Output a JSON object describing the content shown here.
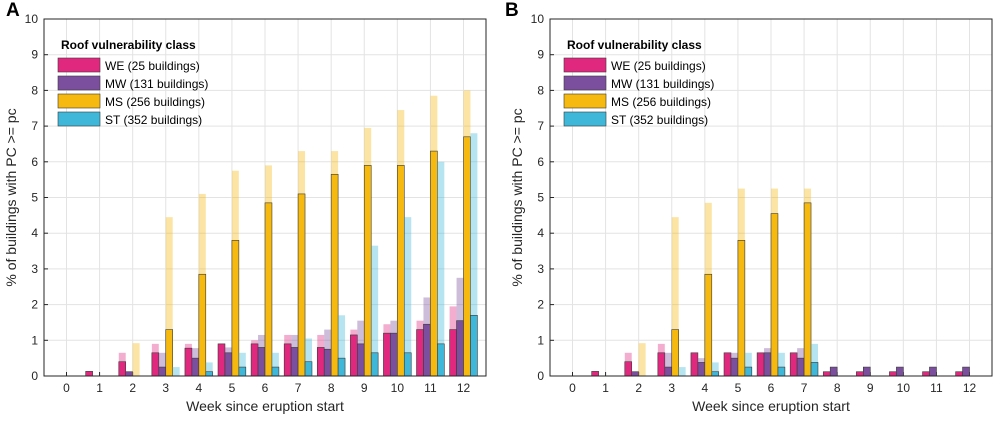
{
  "chart_data": [
    {
      "type": "bar",
      "panel_label": "A",
      "xlabel": "Week since eruption start",
      "ylabel": "% of buildings with PC >= pc",
      "ylim": [
        0,
        10
      ],
      "yticks": [
        "0",
        "1",
        "2",
        "3",
        "4",
        "5",
        "6",
        "7",
        "8",
        "9",
        "10"
      ],
      "categories": [
        "0",
        "1",
        "2",
        "3",
        "4",
        "5",
        "6",
        "7",
        "8",
        "9",
        "10",
        "11",
        "12"
      ],
      "grid": true,
      "legend": {
        "title": "Roof vulnerability class",
        "placement": "top-left",
        "entries": [
          "WE (25 buildings)",
          "MW (131 buildings)",
          "MS (256 buildings)",
          "ST (352 buildings)"
        ]
      },
      "series": [
        {
          "name": "WE (25 buildings)",
          "color": "#e0287f",
          "values": [
            0,
            0.13,
            0.4,
            0.65,
            0.78,
            0.9,
            0.9,
            0.9,
            0.8,
            1.15,
            1.2,
            1.3,
            1.3
          ],
          "upper": [
            0,
            0.13,
            0.65,
            0.9,
            0.9,
            0.9,
            1.0,
            1.15,
            1.15,
            1.3,
            1.45,
            1.55,
            1.95
          ]
        },
        {
          "name": "MW (131 buildings)",
          "color": "#7b4f9e",
          "values": [
            0,
            0,
            0.12,
            0.25,
            0.5,
            0.65,
            0.8,
            0.8,
            0.75,
            0.9,
            1.2,
            1.45,
            1.55
          ],
          "upper": [
            0,
            0,
            0.12,
            0.65,
            0.78,
            0.8,
            1.15,
            1.15,
            1.3,
            1.55,
            1.55,
            2.2,
            2.75
          ]
        },
        {
          "name": "MS (256 buildings)",
          "color": "#f5b90f",
          "values": [
            0,
            0,
            0,
            1.3,
            2.85,
            3.8,
            4.85,
            5.1,
            5.65,
            5.9,
            5.9,
            6.3,
            6.7
          ],
          "upper": [
            0,
            0,
            0.92,
            4.45,
            5.1,
            5.75,
            5.9,
            6.3,
            6.3,
            6.95,
            7.45,
            7.85,
            8.0
          ]
        },
        {
          "name": "ST (352 buildings)",
          "color": "#3fb7d9",
          "values": [
            0,
            0,
            0,
            0,
            0.12,
            0.25,
            0.25,
            0.4,
            0.5,
            0.65,
            0.65,
            0.9,
            1.7
          ],
          "upper": [
            0,
            0,
            0,
            0.25,
            0.38,
            0.65,
            0.65,
            1.05,
            1.7,
            3.65,
            4.45,
            6.0,
            6.8
          ]
        }
      ]
    },
    {
      "type": "bar",
      "panel_label": "B",
      "xlabel": "Week since eruption start",
      "ylabel": "% of buildings with PC >= pc",
      "ylim": [
        0,
        10
      ],
      "yticks": [
        "0",
        "1",
        "2",
        "3",
        "4",
        "5",
        "6",
        "7",
        "8",
        "9",
        "10"
      ],
      "categories": [
        "0",
        "1",
        "2",
        "3",
        "4",
        "5",
        "6",
        "7",
        "8",
        "9",
        "10",
        "11",
        "12"
      ],
      "grid": true,
      "legend": {
        "title": "Roof vulnerability class",
        "placement": "top-left",
        "entries": [
          "WE (25 buildings)",
          "MW (131 buildings)",
          "MS (256 buildings)",
          "ST (352 buildings)"
        ]
      },
      "series": [
        {
          "name": "WE (25 buildings)",
          "color": "#e0287f",
          "values": [
            0,
            0.13,
            0.4,
            0.65,
            0.65,
            0.65,
            0.65,
            0.65,
            0.12,
            0.12,
            0.12,
            0.12,
            0.12
          ],
          "upper": [
            0,
            0.13,
            0.65,
            0.9,
            0.65,
            0.65,
            0.65,
            0.65,
            0.12,
            0.12,
            0.12,
            0.12,
            0.12
          ]
        },
        {
          "name": "MW (131 buildings)",
          "color": "#7b4f9e",
          "values": [
            0,
            0,
            0.12,
            0.25,
            0.38,
            0.5,
            0.65,
            0.5,
            0.25,
            0.25,
            0.25,
            0.25,
            0.25
          ],
          "upper": [
            0,
            0,
            0.12,
            0.65,
            0.5,
            0.65,
            0.78,
            0.78,
            0.25,
            0.25,
            0.25,
            0.25,
            0.25
          ]
        },
        {
          "name": "MS (256 buildings)",
          "color": "#f5b90f",
          "values": [
            0,
            0,
            0,
            1.3,
            2.85,
            3.8,
            4.55,
            4.85,
            0,
            0,
            0,
            0,
            0
          ],
          "upper": [
            0,
            0,
            0.92,
            4.45,
            4.85,
            5.25,
            5.25,
            5.25,
            0,
            0,
            0,
            0,
            0
          ]
        },
        {
          "name": "ST (352 buildings)",
          "color": "#3fb7d9",
          "values": [
            0,
            0,
            0,
            0,
            0.12,
            0.25,
            0.25,
            0.38,
            0,
            0,
            0,
            0,
            0
          ],
          "upper": [
            0,
            0,
            0,
            0.25,
            0.38,
            0.65,
            0.65,
            0.9,
            0,
            0,
            0,
            0,
            0
          ]
        }
      ]
    }
  ]
}
